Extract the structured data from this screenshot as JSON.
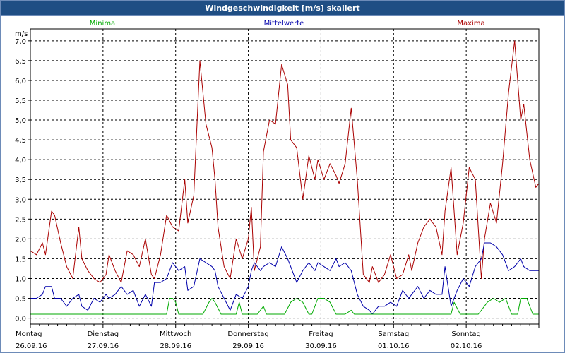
{
  "window": {
    "title": "Windgeschwindigkeit [m/s] skaliert"
  },
  "colors": {
    "min": "#00aa00",
    "avg": "#0000aa",
    "max": "#aa0000",
    "titlebar": "#1f4e84"
  },
  "chart_data": {
    "type": "line",
    "title": "Windgeschwindigkeit [m/s] skaliert",
    "ylabel": "m/s",
    "ylim": [
      -0.15,
      7.3
    ],
    "yticks": [
      "0,0",
      "0,5",
      "1,0",
      "1,5",
      "2,0",
      "2,5",
      "3,0",
      "3,5",
      "4,0",
      "4,5",
      "5,0",
      "5,5",
      "6,0",
      "6,5",
      "7,0"
    ],
    "xlim": [
      0,
      168
    ],
    "days": [
      {
        "name": "Montag",
        "date": "26.09.16"
      },
      {
        "name": "Dienstag",
        "date": "27.09.16"
      },
      {
        "name": "Mittwoch",
        "date": "28.09.16"
      },
      {
        "name": "Donnerstag",
        "date": "29.09.16"
      },
      {
        "name": "Freitag",
        "date": "30.09.16"
      },
      {
        "name": "Samstag",
        "date": "01.10.16"
      },
      {
        "name": "Sonntag",
        "date": "02.10.16"
      }
    ],
    "legend": {
      "min": "Minima",
      "avg": "Mittelwerte",
      "max": "Maxima"
    },
    "series": [
      {
        "name": "Maxima",
        "key": "max",
        "x": [
          0,
          2,
          4,
          5,
          7,
          8,
          10,
          12,
          14,
          16,
          17,
          19,
          21,
          23,
          25,
          26,
          28,
          30,
          32,
          34,
          36,
          38,
          40,
          41,
          43,
          45,
          47,
          49,
          51,
          52,
          54,
          56,
          58,
          60,
          61,
          62,
          64,
          66,
          68,
          70,
          72,
          73,
          74,
          76,
          77,
          79,
          81,
          83,
          85,
          86,
          88,
          90,
          92,
          94,
          95,
          97,
          99,
          101,
          102,
          104,
          106,
          108,
          110,
          112,
          113,
          115,
          117,
          119,
          121,
          123,
          125,
          126,
          128,
          130,
          132,
          134,
          136,
          137,
          139,
          141,
          143,
          145,
          147,
          149,
          150,
          152,
          154,
          156,
          158,
          160,
          162,
          163,
          165,
          167,
          168
        ],
        "values": [
          1.7,
          1.6,
          1.9,
          1.6,
          2.7,
          2.6,
          1.9,
          1.3,
          1.0,
          2.3,
          1.5,
          1.2,
          1.0,
          0.9,
          1.1,
          1.6,
          1.2,
          0.9,
          1.7,
          1.6,
          1.3,
          2.0,
          1.1,
          1.0,
          1.6,
          2.6,
          2.3,
          2.2,
          3.5,
          2.4,
          3.1,
          6.5,
          4.9,
          4.3,
          3.5,
          2.3,
          1.3,
          1.0,
          2.0,
          1.5,
          2.0,
          2.8,
          1.2,
          1.8,
          4.2,
          5.0,
          4.9,
          6.4,
          5.9,
          4.5,
          4.3,
          3.0,
          4.1,
          3.5,
          4.0,
          3.5,
          3.9,
          3.6,
          3.4,
          3.9,
          5.3,
          3.5,
          1.1,
          0.9,
          1.3,
          0.9,
          1.1,
          1.6,
          1.0,
          1.1,
          1.6,
          1.2,
          1.9,
          2.3,
          2.5,
          2.3,
          1.6,
          2.7,
          3.8,
          1.6,
          2.4,
          3.8,
          3.5,
          1.0,
          2.0,
          2.9,
          2.4,
          3.9,
          5.7,
          7.0,
          5.0,
          5.4,
          4.0,
          3.3,
          3.4
        ]
      },
      {
        "name": "Mittelwerte",
        "key": "avg",
        "x": [
          0,
          2,
          4,
          5,
          7,
          8,
          10,
          12,
          14,
          16,
          17,
          19,
          21,
          23,
          25,
          26,
          28,
          30,
          32,
          34,
          36,
          38,
          40,
          41,
          43,
          45,
          47,
          49,
          51,
          52,
          54,
          56,
          58,
          60,
          61,
          62,
          64,
          66,
          68,
          70,
          72,
          73,
          74,
          76,
          77,
          79,
          81,
          83,
          85,
          86,
          88,
          90,
          92,
          94,
          95,
          97,
          99,
          101,
          102,
          104,
          106,
          108,
          110,
          112,
          113,
          115,
          117,
          119,
          121,
          123,
          125,
          126,
          128,
          130,
          132,
          134,
          136,
          137,
          139,
          141,
          143,
          145,
          147,
          149,
          150,
          152,
          154,
          156,
          158,
          160,
          162,
          163,
          165,
          167,
          168
        ],
        "values": [
          0.5,
          0.5,
          0.6,
          0.8,
          0.8,
          0.5,
          0.5,
          0.3,
          0.5,
          0.6,
          0.3,
          0.2,
          0.5,
          0.4,
          0.6,
          0.5,
          0.6,
          0.8,
          0.6,
          0.7,
          0.3,
          0.6,
          0.3,
          0.9,
          0.9,
          1.0,
          1.4,
          1.2,
          1.3,
          0.7,
          0.8,
          1.5,
          1.4,
          1.3,
          1.2,
          0.8,
          0.5,
          0.2,
          0.6,
          0.5,
          0.8,
          1.2,
          1.4,
          1.2,
          1.3,
          1.4,
          1.3,
          1.8,
          1.5,
          1.3,
          0.9,
          1.2,
          1.4,
          1.2,
          1.4,
          1.3,
          1.2,
          1.5,
          1.3,
          1.4,
          1.2,
          0.6,
          0.3,
          0.2,
          0.1,
          0.3,
          0.3,
          0.4,
          0.3,
          0.7,
          0.5,
          0.6,
          0.8,
          0.5,
          0.7,
          0.6,
          0.6,
          1.3,
          0.3,
          0.7,
          1.0,
          0.8,
          1.3,
          1.5,
          1.9,
          1.9,
          1.8,
          1.6,
          1.2,
          1.3,
          1.5,
          1.3,
          1.2,
          1.2,
          1.2
        ]
      },
      {
        "name": "Minima",
        "key": "min",
        "x": [
          0,
          3,
          6,
          9,
          12,
          15,
          18,
          21,
          24,
          27,
          30,
          33,
          36,
          39,
          42,
          45,
          46,
          47,
          48,
          49,
          51,
          54,
          57,
          59,
          60,
          61,
          63,
          66,
          68,
          69,
          70,
          72,
          75,
          77,
          78,
          80,
          82,
          83,
          84,
          86,
          88,
          90,
          92,
          93,
          95,
          97,
          99,
          101,
          102,
          104,
          106,
          107,
          108,
          110,
          113,
          116,
          119,
          122,
          125,
          128,
          131,
          134,
          137,
          139,
          140,
          142,
          145,
          147,
          148,
          149,
          151,
          153,
          155,
          157,
          159,
          161,
          162,
          164,
          166,
          168
        ],
        "values": [
          0.1,
          0.1,
          0.1,
          0.1,
          0.1,
          0.1,
          0.1,
          0.1,
          0.1,
          0.1,
          0.1,
          0.1,
          0.1,
          0.1,
          0.1,
          0.1,
          0.5,
          0.5,
          0.4,
          0.1,
          0.1,
          0.1,
          0.1,
          0.4,
          0.5,
          0.4,
          0.1,
          0.1,
          0.1,
          0.4,
          0.1,
          0.1,
          0.1,
          0.3,
          0.1,
          0.1,
          0.1,
          0.1,
          0.1,
          0.4,
          0.5,
          0.4,
          0.1,
          0.1,
          0.5,
          0.5,
          0.4,
          0.1,
          0.1,
          0.1,
          0.2,
          0.1,
          0.1,
          0.1,
          0.1,
          0.1,
          0.1,
          0.1,
          0.1,
          0.1,
          0.1,
          0.1,
          0.1,
          0.1,
          0.4,
          0.1,
          0.1,
          0.1,
          0.1,
          0.2,
          0.4,
          0.5,
          0.4,
          0.5,
          0.1,
          0.1,
          0.5,
          0.5,
          0.1,
          0.1
        ]
      }
    ]
  }
}
